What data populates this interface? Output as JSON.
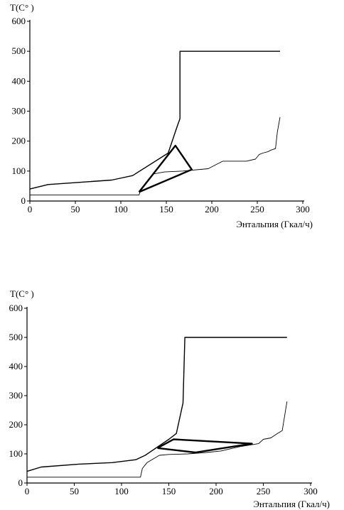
{
  "chart_data": [
    {
      "type": "line",
      "title": "",
      "ylabel": "T(C° )",
      "xlabel": "Энтальпия (Гкал/ч)",
      "xlim": [
        0,
        300
      ],
      "ylim": [
        0,
        600
      ],
      "xticks": [
        "0",
        "50",
        "100",
        "150",
        "200",
        "250",
        "300"
      ],
      "yticks": [
        "0",
        "100",
        "200",
        "300",
        "400",
        "500",
        "600"
      ],
      "grid": false,
      "series": [
        {
          "style": "medium",
          "x": [
            0,
            20,
            90,
            113,
            152,
            162,
            165,
            165,
            275
          ],
          "y": [
            40,
            55,
            70,
            85,
            160,
            250,
            275,
            500,
            500
          ]
        },
        {
          "style": "thin",
          "x": [
            0,
            120,
            122,
            135,
            148,
            168,
            196,
            212,
            238,
            248,
            252,
            256,
            262,
            265,
            270,
            272,
            275
          ],
          "y": [
            20,
            20,
            40,
            90,
            97,
            100,
            108,
            133,
            133,
            140,
            155,
            160,
            165,
            170,
            175,
            230,
            280
          ]
        },
        {
          "style": "thick",
          "x": [
            120,
            160,
            178,
            120
          ],
          "y": [
            30,
            185,
            105,
            30
          ]
        }
      ]
    },
    {
      "type": "line",
      "title": "",
      "ylabel": "T(C° )",
      "xlabel": "Энтальпия (Гкал/ч)",
      "xlim": [
        0,
        300
      ],
      "ylim": [
        0,
        600
      ],
      "xticks": [
        "0",
        "50",
        "100",
        "150",
        "200",
        "250",
        "300"
      ],
      "yticks": [
        "0",
        "100",
        "200",
        "300",
        "400",
        "500",
        "600"
      ],
      "grid": false,
      "series": [
        {
          "style": "medium",
          "x": [
            0,
            15,
            55,
            90,
            115,
            125,
            150,
            158,
            165,
            167,
            167,
            275
          ],
          "y": [
            40,
            55,
            65,
            70,
            80,
            95,
            150,
            170,
            275,
            500,
            500,
            500
          ]
        },
        {
          "style": "thin",
          "x": [
            0,
            120,
            122,
            127,
            140,
            150,
            170,
            190,
            205,
            225,
            245,
            250,
            258,
            265,
            270,
            275
          ],
          "y": [
            20,
            20,
            50,
            70,
            95,
            98,
            100,
            105,
            110,
            125,
            135,
            150,
            155,
            170,
            180,
            280
          ]
        },
        {
          "style": "thick",
          "x": [
            138,
            155,
            238,
            178,
            138
          ],
          "y": [
            120,
            150,
            135,
            105,
            120
          ]
        }
      ]
    }
  ]
}
